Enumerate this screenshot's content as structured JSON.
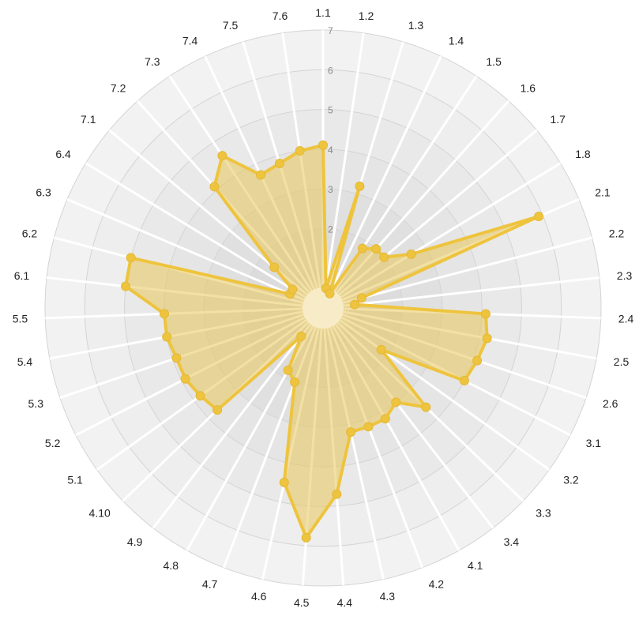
{
  "chart_data": {
    "type": "radar",
    "title": "",
    "categories": [
      "1.1",
      "1.2",
      "1.3",
      "1.4",
      "1.5",
      "1.6",
      "1.7",
      "1.8",
      "2.1",
      "2.2",
      "2.3",
      "2.4",
      "2.5",
      "2.6",
      "3.1",
      "3.2",
      "3.3",
      "3.4",
      "4.1",
      "4.2",
      "4.3",
      "4.4",
      "4.5",
      "4.6",
      "4.7",
      "4.8",
      "4.9",
      "4.10",
      "5.1",
      "5.2",
      "5.3",
      "5.4",
      "5.5",
      "6.1",
      "6.2",
      "6.3",
      "6.4",
      "7.1",
      "7.2",
      "7.3",
      "7.4",
      "7.5",
      "7.6"
    ],
    "values": [
      4.1,
      0.5,
      3.2,
      0.4,
      1.8,
      2.0,
      2.0,
      2.6,
      5.9,
      1.0,
      0.8,
      4.1,
      4.2,
      4.1,
      4.0,
      1.8,
      3.6,
      3.0,
      3.2,
      3.2,
      3.2,
      4.7,
      5.8,
      4.5,
      2.0,
      1.8,
      0.9,
      3.7,
      3.8,
      3.9,
      3.9,
      4.0,
      4.0,
      5.0,
      5.0,
      0.9,
      0.9,
      1.6,
      4.1,
      4.6,
      3.7,
      3.8,
      4.0
    ],
    "rmax": 7,
    "ticks": [
      1,
      2,
      3,
      4,
      5,
      6,
      7
    ],
    "tick_labels": [
      "",
      "2",
      "3",
      "4",
      "5",
      "6",
      "7"
    ],
    "colors": {
      "fill": "#e9c75a",
      "stroke": "#eec43e",
      "point": "#eec43e",
      "center": "#f8ecc8",
      "ring_dark": "#dcdcdc",
      "ring_light": "#f2f2f2",
      "spoke": "#ffffff"
    }
  }
}
